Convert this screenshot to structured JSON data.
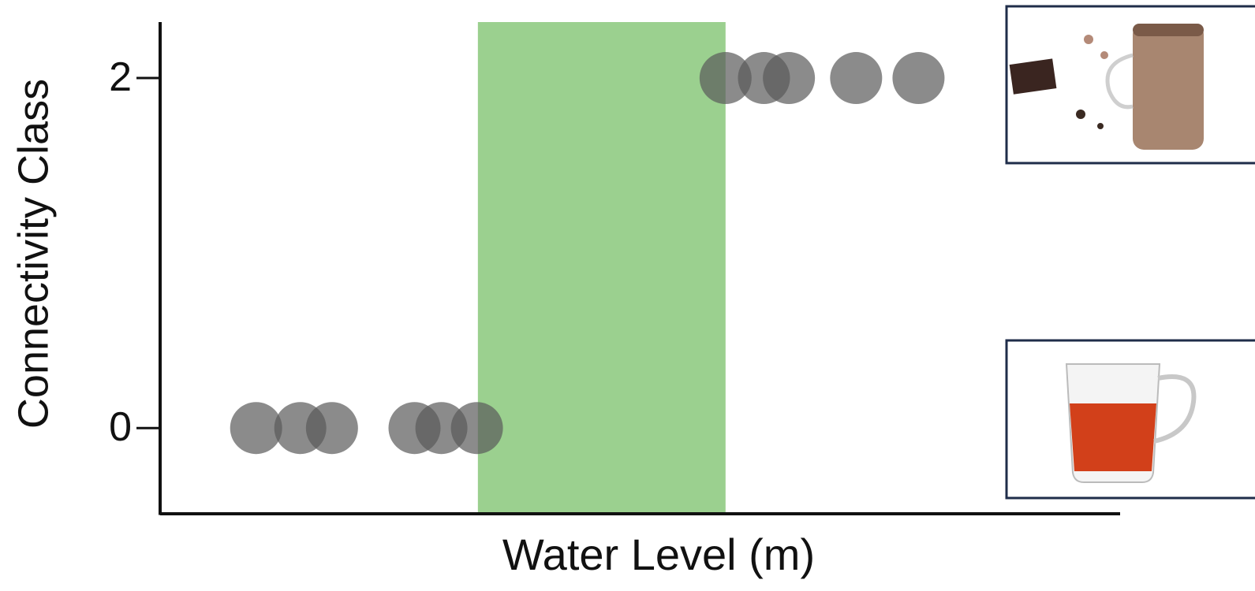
{
  "chart_data": {
    "type": "scatter",
    "xlabel": "Water Level (m)",
    "ylabel": "Connectivity Class",
    "x": [
      10.0,
      14.6,
      17.9,
      26.5,
      29.3,
      33.0,
      58.9,
      62.9,
      65.5,
      72.5,
      79.0
    ],
    "values": [
      0,
      0,
      0,
      0,
      0,
      0,
      2,
      2,
      2,
      2,
      2
    ],
    "color": "#5a5a5a",
    "shaded_region": [
      33.1,
      58.9
    ],
    "shaded_color": "#9bd08f",
    "xlim": [
      0,
      100
    ],
    "ylim": [
      -0.49,
      2.32
    ],
    "yticks": [
      0,
      2
    ],
    "grid": false
  }
}
